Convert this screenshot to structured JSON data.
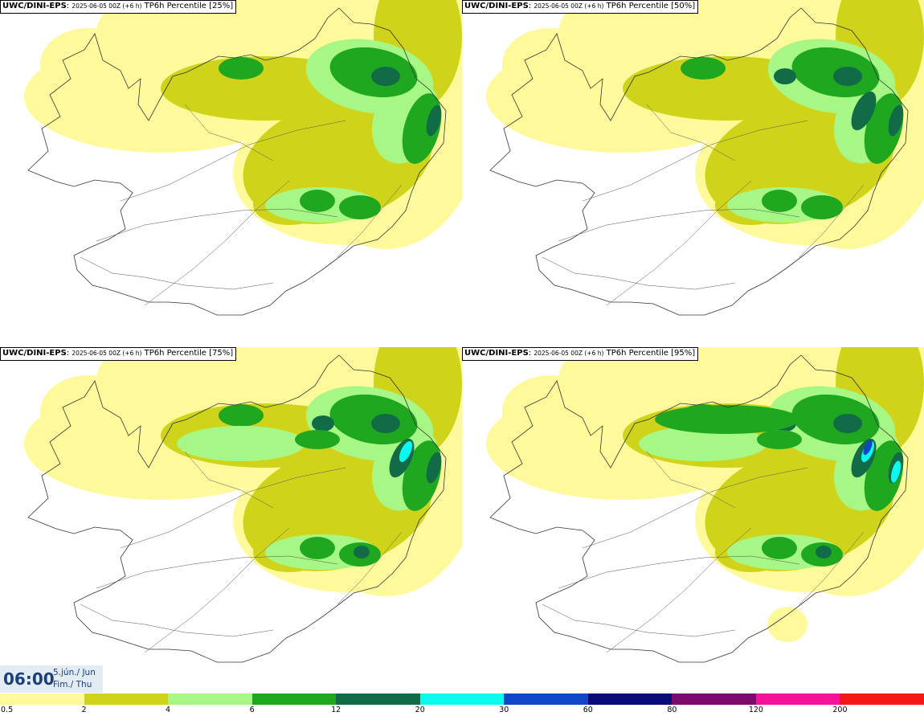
{
  "panels": [
    {
      "model": "UWC/DINI-EPS",
      "run": "2025-06-05 00Z (+6 h)",
      "product": "TP6h Percentile [25%]",
      "intensity": 0
    },
    {
      "model": "UWC/DINI-EPS",
      "run": "2025-06-05 00Z (+6 h)",
      "product": "TP6h Percentile [50%]",
      "intensity": 1
    },
    {
      "model": "UWC/DINI-EPS",
      "run": "2025-06-05 00Z (+6 h)",
      "product": "TP6h Percentile [75%]",
      "intensity": 2
    },
    {
      "model": "UWC/DINI-EPS",
      "run": "2025-06-05 00Z (+6 h)",
      "product": "TP6h Percentile [95%]",
      "intensity": 3
    }
  ],
  "valid_time": {
    "time": "06:00",
    "date_line1": "5.jún./ Jun",
    "date_line2": "Fim./ Thu"
  },
  "legend": {
    "colors": [
      "#fefa9c",
      "#cfd41b",
      "#a6f786",
      "#1fa81f",
      "#116b47",
      "#0afaf0",
      "#1047c8",
      "#0a0a78",
      "#7a0a6e",
      "#f5139a",
      "#f51616"
    ],
    "thresholds": [
      "0.5",
      "2",
      "4",
      "6",
      "12",
      "20",
      "30",
      "60",
      "80",
      "120",
      "200"
    ]
  }
}
